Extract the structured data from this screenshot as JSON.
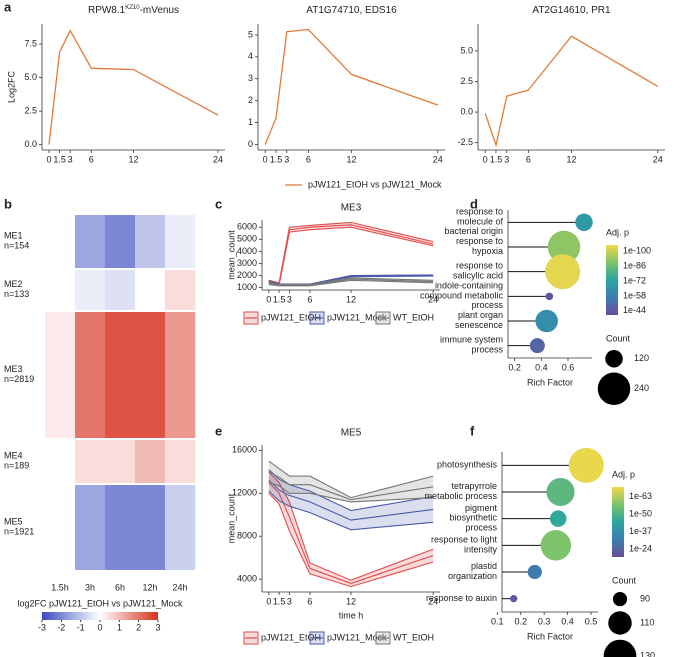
{
  "chart_data": [
    {
      "type": "line",
      "panel": "a",
      "title_parts": [
        "RPW8.1",
        "KZ10",
        "-mVenus"
      ],
      "ylabel": "Log2FC",
      "x": [
        0,
        1.5,
        3,
        6,
        12,
        24
      ],
      "xticks": [
        0,
        1.5,
        3,
        6,
        12,
        24
      ],
      "xlim": [
        -1,
        25
      ],
      "ylim": [
        -0.4,
        9
      ],
      "yticks": [
        {
          "value": 0,
          "label": "0.0"
        },
        2.5,
        {
          "value": 5,
          "label": "5.0"
        },
        7.5
      ],
      "series": [
        {
          "name": "pJW121_EtOH vs pJW121_Mock",
          "color": "#e07b39",
          "values": [
            0,
            6.9,
            8.5,
            5.7,
            5.6,
            2.2
          ]
        }
      ]
    },
    {
      "type": "line",
      "title_parts": [
        "AT1G74710, EDS16"
      ],
      "x": [
        0,
        1.5,
        3,
        6,
        12,
        24
      ],
      "xticks": [
        0,
        1.5,
        3,
        6,
        12,
        24
      ],
      "xlim": [
        -1,
        25
      ],
      "ylim": [
        -0.25,
        5.5
      ],
      "yticks": [
        0,
        1,
        2,
        3,
        4,
        5
      ],
      "series": [
        {
          "color": "#e07b39",
          "values": [
            0,
            1.2,
            5.15,
            5.25,
            3.2,
            1.8
          ]
        }
      ]
    },
    {
      "type": "line",
      "title_parts": [
        "AT2G14610, PR1"
      ],
      "x": [
        0,
        1.5,
        3,
        6,
        12,
        24
      ],
      "xticks": [
        0,
        1.5,
        3,
        6,
        12,
        24
      ],
      "xlim": [
        -1,
        25
      ],
      "ylim": [
        -3.1,
        7.2
      ],
      "yticks": [
        -2.5,
        {
          "value": 0,
          "label": "0.0"
        },
        2.5,
        {
          "value": 5,
          "label": "5.0"
        }
      ],
      "series": [
        {
          "color": "#e07b39",
          "values": [
            -0.1,
            -2.7,
            1.3,
            1.8,
            6.2,
            2.1
          ]
        }
      ]
    },
    {
      "type": "heatmap",
      "panel": "b",
      "labels": [
        "ME1\nn=154",
        "ME2\nn=133",
        "ME3\nn=2819",
        "ME4\nn=189",
        "ME5\nn=1921"
      ],
      "columns": [
        "1.5h",
        "3h",
        "6h",
        "12h",
        "24h"
      ],
      "values": [
        [
          0,
          -1.5,
          -2,
          -1,
          -0.3
        ],
        [
          0,
          -0.3,
          -0.5,
          0,
          0.5
        ],
        [
          0.3,
          2,
          2.5,
          2.5,
          1.5
        ],
        [
          0,
          0.5,
          0.5,
          1,
          0.5
        ],
        [
          0,
          -1.5,
          -2,
          -2,
          -0.8
        ]
      ],
      "clim": [
        -3,
        3
      ],
      "cticks": [
        -3,
        -2,
        -1,
        0,
        1,
        2,
        3
      ],
      "colormap": [
        "#3b4cc0",
        "#ffffff",
        "#d7301f"
      ],
      "colorbar_label": "log2FC pJW121_EtOH vs pJW121_Mock"
    },
    {
      "type": "ribbon",
      "panel": "c",
      "title": "ME3",
      "ylabel": "mean_count",
      "x": [
        0,
        1.5,
        3,
        6,
        12,
        24
      ],
      "xticks": [
        0,
        1.5,
        3,
        6,
        12,
        24
      ],
      "xlim": [
        -1,
        25
      ],
      "ylim": [
        800,
        6600
      ],
      "yticks": [
        1000,
        2000,
        3000,
        4000,
        5000,
        6000
      ],
      "series": [
        {
          "name": "pJW121_EtOH",
          "color": "#e04b4b",
          "values": [
            1500,
            1300,
            5800,
            6000,
            6200,
            4600
          ],
          "lower": [
            1400,
            1200,
            5600,
            5800,
            6000,
            4450
          ],
          "upper": [
            1600,
            1400,
            6000,
            6150,
            6400,
            4800
          ]
        },
        {
          "name": "pJW121_Mock",
          "color": "#4b5aa8",
          "values": [
            1450,
            1250,
            1250,
            1250,
            1950,
            2000
          ],
          "lower": [
            1350,
            1200,
            1200,
            1200,
            1900,
            1950
          ],
          "upper": [
            1550,
            1300,
            1300,
            1300,
            2000,
            2050
          ]
        },
        {
          "name": "WT_EtOH",
          "color": "#777777",
          "values": [
            1350,
            1200,
            1200,
            1200,
            1700,
            1500
          ],
          "lower": [
            1250,
            1150,
            1150,
            1150,
            1600,
            1400
          ],
          "upper": [
            1450,
            1250,
            1250,
            1250,
            1800,
            1600
          ]
        }
      ]
    },
    {
      "type": "ribbon",
      "panel": "e",
      "title": "ME5",
      "ylabel": "mean_count",
      "xlabel": "time h",
      "x": [
        0,
        1.5,
        3,
        6,
        12,
        24
      ],
      "xticks": [
        0,
        1.5,
        3,
        6,
        12,
        24
      ],
      "xlim": [
        -1,
        25
      ],
      "ylim": [
        2800,
        16500
      ],
      "yticks": [
        4000,
        8000,
        12000,
        16000
      ],
      "series": [
        {
          "name": "pJW121_EtOH",
          "color": "#e04b4b",
          "values": [
            13000,
            12000,
            9800,
            5000,
            3600,
            6200
          ],
          "lower": [
            12000,
            11000,
            8500,
            4500,
            3300,
            5600
          ],
          "upper": [
            14000,
            13000,
            11200,
            5500,
            3900,
            6800
          ]
        },
        {
          "name": "pJW121_Mock",
          "color": "#4b5aa8",
          "values": [
            13200,
            12300,
            11800,
            11200,
            9500,
            10500
          ],
          "lower": [
            12200,
            11300,
            10800,
            10200,
            8600,
            9300
          ],
          "upper": [
            14200,
            13300,
            12800,
            12200,
            10400,
            11700
          ]
        },
        {
          "name": "WT_EtOH",
          "color": "#777777",
          "values": [
            14000,
            13500,
            12800,
            12800,
            11400,
            12600
          ],
          "lower": [
            13000,
            12700,
            12000,
            12000,
            11200,
            11600
          ],
          "upper": [
            15000,
            14300,
            13600,
            13600,
            11600,
            13600
          ]
        }
      ]
    },
    {
      "type": "dot",
      "panel": "d",
      "categories": [
        "response to\nmolecule of\nbacterial origin",
        "response to\nhypoxia",
        "response to\nsalicylic acid",
        "indole-containing\ncompound metabolic\nprocess",
        "plant organ\nsenescence",
        "immune system\nprocess"
      ],
      "values": [
        0.72,
        0.57,
        0.56,
        0.46,
        0.44,
        0.37
      ],
      "color_values": [
        1e-68,
        1e-92,
        1e-104,
        1e-42,
        1e-62,
        1e-48
      ],
      "sizes": [
        120,
        240,
        260,
        40,
        160,
        100
      ],
      "xlim": [
        0.15,
        0.78
      ],
      "xticks": [
        0.2,
        0.4,
        0.6
      ],
      "xlabel": "Rich Factor",
      "color_label": "Adj. p",
      "clim": [
        1e-106,
        1e-40
      ],
      "cticks": [
        {
          "value": 1e-100,
          "label": "1e-100"
        },
        {
          "value": 1e-86,
          "label": "1e-86"
        },
        {
          "value": 1e-72,
          "label": "1e-72"
        },
        {
          "value": 1e-58,
          "label": "1e-58"
        },
        {
          "value": 1e-44,
          "label": "1e-44"
        }
      ],
      "colormap": [
        "#f2d94a",
        "#7cc36a",
        "#2aa6a0",
        "#3b7fb0",
        "#6b4c9a"
      ],
      "size_label": "Count",
      "size_lim": [
        20,
        260
      ],
      "size_ticks": [
        120,
        240
      ]
    },
    {
      "type": "dot",
      "panel": "f",
      "categories": [
        "photosynthesis",
        "tetrapyrrole\nmetabolic process",
        "pigment\nbiosynthetic\nprocess",
        "response to light\nintensity",
        "plastid\norganization",
        "response to auxin"
      ],
      "values": [
        0.48,
        0.37,
        0.36,
        0.35,
        0.26,
        0.17
      ],
      "color_values": [
        1e-69,
        1e-52,
        1e-45,
        1e-57,
        1e-30,
        1e-20
      ],
      "sizes": [
        135,
        120,
        95,
        125,
        90,
        75
      ],
      "xlim": [
        0.12,
        0.53
      ],
      "xticks": [
        0.1,
        0.2,
        0.3,
        0.4,
        0.5
      ],
      "xlabel": "Rich Factor",
      "color_label": "Adj. p",
      "clim": [
        1e-70,
        1e-18
      ],
      "cticks": [
        {
          "value": 1e-63,
          "label": "1e-63"
        },
        {
          "value": 1e-50,
          "label": "1e-50"
        },
        {
          "value": 1e-37,
          "label": "1e-37"
        },
        {
          "value": 1e-24,
          "label": "1e-24"
        }
      ],
      "colormap": [
        "#f2d94a",
        "#7cc36a",
        "#2aa6a0",
        "#3b7fb0",
        "#6b4c9a"
      ],
      "size_label": "Count",
      "size_lim": [
        70,
        135
      ],
      "size_ticks": [
        90,
        110,
        130
      ]
    }
  ]
}
